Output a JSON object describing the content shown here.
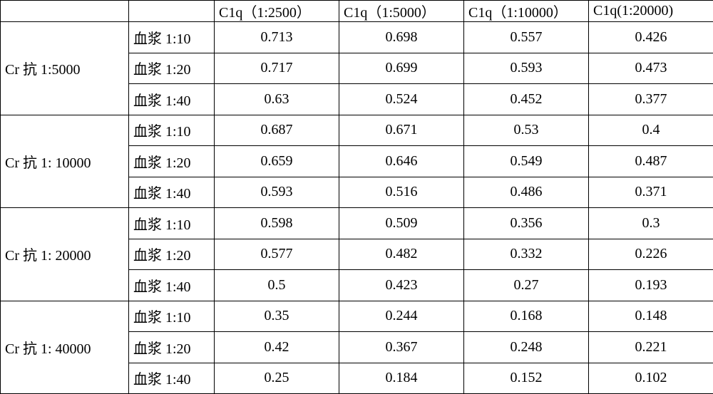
{
  "header": {
    "c1": "C1q（1:2500）",
    "c2": "C1q（1:5000）",
    "c3": "C1q（1:10000）",
    "c4": "C1q(1:20000)"
  },
  "groups": [
    {
      "label_prefix": "Cr 抗 ",
      "label_ratio": "1:5000",
      "rows": [
        {
          "plasma_prefix": "血浆 ",
          "plasma_ratio": "1:10",
          "v": [
            "0.713",
            "0.698",
            "0.557",
            "0.426"
          ]
        },
        {
          "plasma_prefix": "血浆 ",
          "plasma_ratio": "1:20",
          "v": [
            "0.717",
            "0.699",
            "0.593",
            "0.473"
          ]
        },
        {
          "plasma_prefix": "血浆 ",
          "plasma_ratio": "1:40",
          "v": [
            "0.63",
            "0.524",
            "0.452",
            "0.377"
          ]
        }
      ]
    },
    {
      "label_prefix": "Cr 抗 ",
      "label_ratio": "1: 10000",
      "rows": [
        {
          "plasma_prefix": "血浆 ",
          "plasma_ratio": "1:10",
          "v": [
            "0.687",
            "0.671",
            "0.53",
            "0.4"
          ]
        },
        {
          "plasma_prefix": "血浆 ",
          "plasma_ratio": "1:20",
          "v": [
            "0.659",
            "0.646",
            "0.549",
            "0.487"
          ]
        },
        {
          "plasma_prefix": "血浆 ",
          "plasma_ratio": "1:40",
          "v": [
            "0.593",
            "0.516",
            "0.486",
            "0.371"
          ]
        }
      ]
    },
    {
      "label_prefix": "Cr 抗 ",
      "label_ratio": "1: 20000",
      "rows": [
        {
          "plasma_prefix": "血浆 ",
          "plasma_ratio": "1:10",
          "v": [
            "0.598",
            "0.509",
            "0.356",
            "0.3"
          ]
        },
        {
          "plasma_prefix": "血浆 ",
          "plasma_ratio": "1:20",
          "v": [
            "0.577",
            "0.482",
            "0.332",
            "0.226"
          ]
        },
        {
          "plasma_prefix": "血浆 ",
          "plasma_ratio": "1:40",
          "v": [
            "0.5",
            "0.423",
            "0.27",
            "0.193"
          ]
        }
      ]
    },
    {
      "label_prefix": "Cr 抗 ",
      "label_ratio": "1: 40000",
      "rows": [
        {
          "plasma_prefix": "血浆 ",
          "plasma_ratio": "1:10",
          "v": [
            "0.35",
            "0.244",
            "0.168",
            "0.148"
          ]
        },
        {
          "plasma_prefix": "血浆 ",
          "plasma_ratio": "1:20",
          "v": [
            "0.42",
            "0.367",
            "0.248",
            "0.221"
          ]
        },
        {
          "plasma_prefix": "血浆 ",
          "plasma_ratio": "1:40",
          "v": [
            "0.25",
            "0.184",
            "0.152",
            "0.102"
          ]
        }
      ]
    }
  ]
}
